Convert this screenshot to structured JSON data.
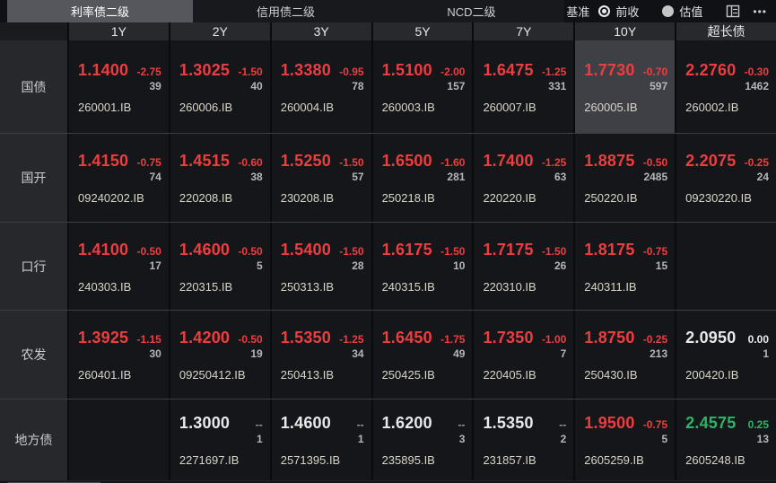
{
  "tabs": [
    {
      "label": "利率债二级",
      "active": true
    },
    {
      "label": "信用债二级",
      "active": false
    },
    {
      "label": "NCD二级",
      "active": false
    }
  ],
  "benchmark": {
    "label": "基准",
    "options": [
      {
        "label": "前收",
        "selected": true
      },
      {
        "label": "估值",
        "selected": false
      }
    ]
  },
  "icons": {
    "more": "•••"
  },
  "columns": [
    "1Y",
    "2Y",
    "3Y",
    "5Y",
    "7Y",
    "10Y",
    "超长债"
  ],
  "colors": {
    "red": "#ee3d3f",
    "green": "#2db467",
    "white": "#e9e9e9",
    "gray": "#9a9da3",
    "count": "#b3b6bb",
    "code": "#d9d5c8"
  },
  "rows": [
    {
      "label": "国债",
      "cells": [
        {
          "yield": "1.1400",
          "change": "-2.75",
          "count": "39",
          "code": "260001.IB",
          "yield_color": "red",
          "change_color": "red"
        },
        {
          "yield": "1.3025",
          "change": "-1.50",
          "count": "40",
          "code": "260006.IB",
          "yield_color": "red",
          "change_color": "red"
        },
        {
          "yield": "1.3380",
          "change": "-0.95",
          "count": "78",
          "code": "260004.IB",
          "yield_color": "red",
          "change_color": "red"
        },
        {
          "yield": "1.5100",
          "change": "-2.00",
          "count": "157",
          "code": "260003.IB",
          "yield_color": "red",
          "change_color": "red"
        },
        {
          "yield": "1.6475",
          "change": "-1.25",
          "count": "331",
          "code": "260007.IB",
          "yield_color": "red",
          "change_color": "red"
        },
        {
          "yield": "1.7730",
          "change": "-0.70",
          "count": "597",
          "code": "260005.IB",
          "yield_color": "red",
          "change_color": "red",
          "highlighted": true
        },
        {
          "yield": "2.2760",
          "change": "-0.30",
          "count": "1462",
          "code": "260002.IB",
          "yield_color": "red",
          "change_color": "red"
        }
      ]
    },
    {
      "label": "国开",
      "cells": [
        {
          "yield": "1.4150",
          "change": "-0.75",
          "count": "74",
          "code": "09240202.IB",
          "yield_color": "red",
          "change_color": "red"
        },
        {
          "yield": "1.4515",
          "change": "-0.60",
          "count": "38",
          "code": "220208.IB",
          "yield_color": "red",
          "change_color": "red"
        },
        {
          "yield": "1.5250",
          "change": "-1.50",
          "count": "57",
          "code": "230208.IB",
          "yield_color": "red",
          "change_color": "red"
        },
        {
          "yield": "1.6500",
          "change": "-1.60",
          "count": "281",
          "code": "250218.IB",
          "yield_color": "red",
          "change_color": "red"
        },
        {
          "yield": "1.7400",
          "change": "-1.25",
          "count": "63",
          "code": "220220.IB",
          "yield_color": "red",
          "change_color": "red"
        },
        {
          "yield": "1.8875",
          "change": "-0.50",
          "count": "2485",
          "code": "250220.IB",
          "yield_color": "red",
          "change_color": "red"
        },
        {
          "yield": "2.2075",
          "change": "-0.25",
          "count": "24",
          "code": "09230220.IB",
          "yield_color": "red",
          "change_color": "red"
        }
      ]
    },
    {
      "label": "口行",
      "cells": [
        {
          "yield": "1.4100",
          "change": "-0.50",
          "count": "17",
          "code": "240303.IB",
          "yield_color": "red",
          "change_color": "red"
        },
        {
          "yield": "1.4600",
          "change": "-0.50",
          "count": "5",
          "code": "220315.IB",
          "yield_color": "red",
          "change_color": "red"
        },
        {
          "yield": "1.5400",
          "change": "-1.50",
          "count": "28",
          "code": "250313.IB",
          "yield_color": "red",
          "change_color": "red"
        },
        {
          "yield": "1.6175",
          "change": "-1.50",
          "count": "10",
          "code": "240315.IB",
          "yield_color": "red",
          "change_color": "red"
        },
        {
          "yield": "1.7175",
          "change": "-1.50",
          "count": "26",
          "code": "220310.IB",
          "yield_color": "red",
          "change_color": "red"
        },
        {
          "yield": "1.8175",
          "change": "-0.75",
          "count": "15",
          "code": "240311.IB",
          "yield_color": "red",
          "change_color": "red"
        },
        null
      ]
    },
    {
      "label": "农发",
      "cells": [
        {
          "yield": "1.3925",
          "change": "-1.15",
          "count": "30",
          "code": "260401.IB",
          "yield_color": "red",
          "change_color": "red"
        },
        {
          "yield": "1.4200",
          "change": "-0.50",
          "count": "19",
          "code": "09250412.IB",
          "yield_color": "red",
          "change_color": "red"
        },
        {
          "yield": "1.5350",
          "change": "-1.25",
          "count": "34",
          "code": "250413.IB",
          "yield_color": "red",
          "change_color": "red"
        },
        {
          "yield": "1.6450",
          "change": "-1.75",
          "count": "49",
          "code": "250425.IB",
          "yield_color": "red",
          "change_color": "red"
        },
        {
          "yield": "1.7350",
          "change": "-1.00",
          "count": "7",
          "code": "220405.IB",
          "yield_color": "red",
          "change_color": "red"
        },
        {
          "yield": "1.8750",
          "change": "-0.25",
          "count": "213",
          "code": "250430.IB",
          "yield_color": "red",
          "change_color": "red"
        },
        {
          "yield": "2.0950",
          "change": "0.00",
          "count": "1",
          "code": "200420.IB",
          "yield_color": "white",
          "change_color": "white"
        }
      ]
    },
    {
      "label": "地方债",
      "cells": [
        null,
        {
          "yield": "1.3000",
          "change": "--",
          "count": "1",
          "code": "2271697.IB",
          "yield_color": "white",
          "change_color": "gray"
        },
        {
          "yield": "1.4600",
          "change": "--",
          "count": "1",
          "code": "2571395.IB",
          "yield_color": "white",
          "change_color": "gray"
        },
        {
          "yield": "1.6200",
          "change": "--",
          "count": "3",
          "code": "235895.IB",
          "yield_color": "white",
          "change_color": "gray"
        },
        {
          "yield": "1.5350",
          "change": "--",
          "count": "2",
          "code": "231857.IB",
          "yield_color": "white",
          "change_color": "gray"
        },
        {
          "yield": "1.9500",
          "change": "-0.75",
          "count": "5",
          "code": "2605259.IB",
          "yield_color": "red",
          "change_color": "red"
        },
        {
          "yield": "2.4575",
          "change": "0.25",
          "count": "13",
          "code": "2605248.IB",
          "yield_color": "green",
          "change_color": "green"
        }
      ]
    }
  ]
}
